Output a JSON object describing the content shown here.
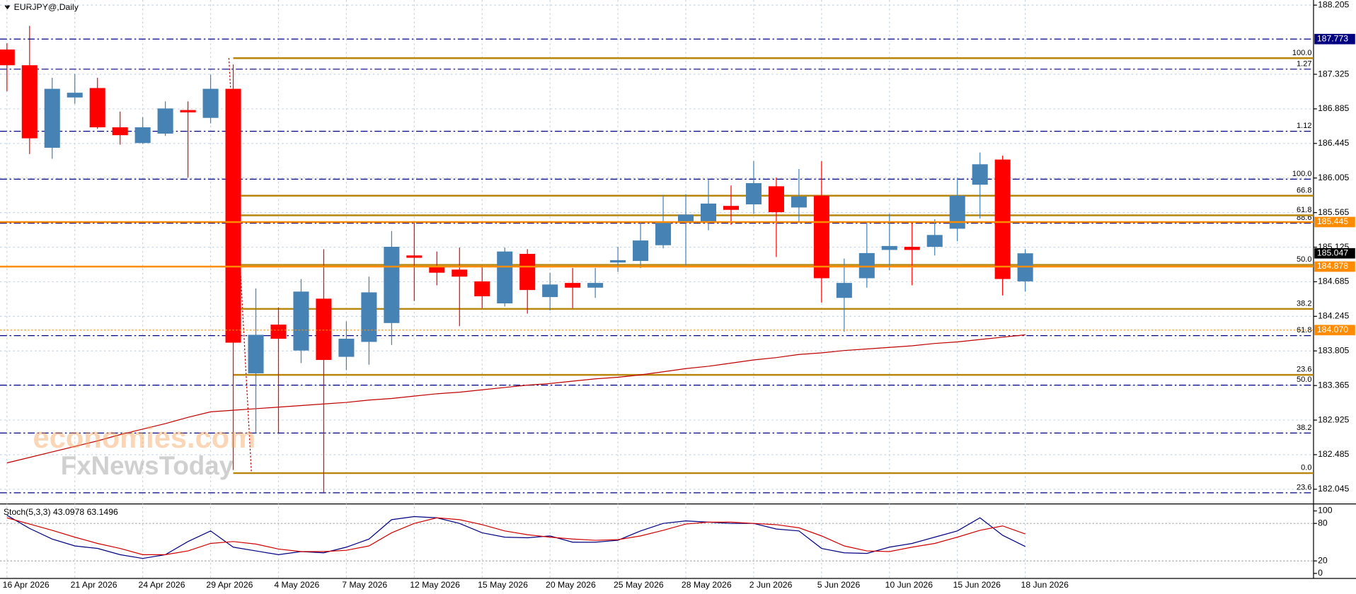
{
  "chart_data": [
    {
      "type": "candlestick",
      "title": "EURJPY@,Daily",
      "categories": [
        "16 Apr 2026",
        null,
        null,
        "21 Apr 2026",
        null,
        null,
        "24 Apr 2026",
        null,
        null,
        "29 Apr 2026",
        null,
        null,
        "4 May 2026",
        null,
        null,
        "7 May 2026",
        null,
        null,
        "12 May 2026",
        null,
        null,
        "15 May 2026",
        null,
        null,
        "20 May 2026",
        null,
        null,
        "25 May 2026",
        null,
        null,
        "28 May 2026",
        null,
        null,
        "2 Jun 2026",
        null,
        null,
        "5 Jun 2026",
        null,
        null,
        "10 Jun 2026",
        null,
        null,
        "15 Jun 2026",
        null,
        null,
        "18 Jun 2026"
      ],
      "open": [
        187.64,
        187.44,
        186.39,
        187.03,
        187.15,
        186.65,
        186.45,
        186.57,
        186.87,
        186.77,
        187.14,
        183.52,
        184.14,
        183.81,
        184.47,
        183.73,
        183.92,
        184.16,
        185.02,
        184.88,
        184.84,
        184.69,
        184.41,
        185.04,
        184.49,
        184.67,
        184.61,
        184.93,
        184.95,
        185.15,
        185.45,
        185.45,
        185.65,
        185.67,
        185.9,
        185.63,
        185.78,
        184.48,
        184.73,
        185.09,
        185.13,
        185.13,
        185.36,
        185.92,
        186.24,
        184.69
      ],
      "high": [
        187.72,
        187.94,
        187.28,
        187.33,
        187.28,
        186.85,
        186.78,
        186.98,
        186.98,
        187.32,
        187.45,
        184.6,
        184.36,
        184.72,
        185.1,
        184.18,
        184.75,
        185.33,
        185.45,
        185.07,
        185.12,
        184.89,
        185.12,
        185.1,
        184.8,
        184.86,
        184.86,
        185.13,
        185.45,
        185.79,
        185.8,
        185.99,
        185.91,
        186.22,
        186.01,
        186.12,
        186.22,
        184.98,
        185.45,
        185.55,
        185.43,
        185.48,
        186.01,
        186.33,
        186.29,
        185.1
      ],
      "low": [
        187.11,
        186.31,
        186.25,
        186.95,
        186.63,
        186.43,
        186.44,
        186.54,
        186.01,
        186.7,
        182.29,
        182.76,
        182.76,
        183.65,
        182.0,
        183.56,
        183.63,
        183.88,
        184.44,
        184.64,
        184.12,
        184.35,
        184.37,
        184.28,
        184.32,
        184.35,
        184.48,
        184.81,
        184.86,
        185.11,
        184.89,
        185.34,
        185.41,
        185.55,
        185.0,
        185.45,
        184.42,
        184.05,
        184.61,
        184.83,
        184.64,
        185.02,
        185.2,
        185.49,
        184.51,
        184.56
      ],
      "close": [
        187.44,
        186.51,
        187.14,
        187.09,
        186.65,
        186.55,
        186.65,
        186.89,
        186.84,
        187.14,
        183.91,
        184.01,
        183.96,
        184.56,
        183.69,
        183.96,
        184.55,
        185.13,
        184.99,
        184.8,
        184.75,
        184.5,
        185.07,
        184.58,
        184.65,
        184.61,
        184.67,
        184.96,
        185.21,
        185.44,
        185.54,
        185.68,
        185.6,
        185.94,
        185.57,
        185.77,
        184.73,
        184.67,
        185.05,
        185.14,
        185.09,
        185.28,
        185.78,
        186.18,
        184.72,
        185.047
      ],
      "up_color": "#4682b4",
      "down_color": "#ff0000",
      "overlay": {
        "color": "#c00000",
        "values": [
          182.38,
          182.45,
          182.52,
          182.59,
          182.66,
          182.74,
          182.81,
          182.88,
          182.96,
          183.03,
          183.05,
          183.07,
          183.09,
          183.11,
          183.13,
          183.15,
          183.18,
          183.2,
          183.23,
          183.26,
          183.28,
          183.31,
          183.34,
          183.37,
          183.39,
          183.42,
          183.45,
          183.47,
          183.5,
          183.54,
          183.58,
          183.61,
          183.65,
          183.69,
          183.72,
          183.76,
          183.78,
          183.81,
          183.83,
          183.85,
          183.87,
          183.9,
          183.92,
          183.95,
          183.98,
          184.01
        ]
      },
      "ylim": [
        181.88,
        188.27
      ],
      "yticks": [
        188.205,
        187.325,
        186.885,
        186.445,
        186.005,
        185.565,
        185.125,
        184.685,
        184.245,
        183.805,
        183.365,
        182.925,
        182.485,
        182.045
      ],
      "grid": true,
      "levels": [
        {
          "value": 187.39,
          "label": "1.27",
          "color": "#000080",
          "style": "dashdot"
        },
        {
          "value": 186.6,
          "label": "1.12",
          "color": "#000080",
          "style": "dashdot"
        },
        {
          "value": 185.99,
          "label": "100.0",
          "color": "#000080",
          "style": "dashdot"
        },
        {
          "value": 185.43,
          "label": "88.6",
          "color": "#000080",
          "style": "dashdot"
        },
        {
          "value": 184.0,
          "label": "61.8",
          "color": "#000080",
          "style": "dashdot"
        },
        {
          "value": 183.37,
          "label": "50.0",
          "color": "#000080",
          "style": "dashdot"
        },
        {
          "value": 182.76,
          "label": "38.2",
          "color": "#000080",
          "style": "dashdot"
        },
        {
          "value": 182.0,
          "label": "23.6",
          "color": "#000080",
          "style": "dashdot"
        },
        {
          "value": 187.53,
          "label": "100.0",
          "color": "#b8860b",
          "style": "fib"
        },
        {
          "value": 185.78,
          "label": "66.8",
          "color": "#b8860b",
          "style": "fib"
        },
        {
          "value": 185.53,
          "label": "61.8",
          "color": "#b8860b",
          "style": "fib"
        },
        {
          "value": 184.9,
          "label": "50.0",
          "color": "#b8860b",
          "style": "fib"
        },
        {
          "value": 184.34,
          "label": "38.2",
          "color": "#b8860b",
          "style": "fib"
        },
        {
          "value": 183.5,
          "label": "23.6",
          "color": "#b8860b",
          "style": "fib"
        },
        {
          "value": 182.25,
          "label": "0.0",
          "color": "#b8860b",
          "style": "fib"
        }
      ],
      "price_tags": [
        {
          "value": 187.773,
          "color": "#000080",
          "style": "dashdot"
        },
        {
          "value": 185.445,
          "color": "#ff8c00",
          "style": "solid"
        },
        {
          "value": 185.047,
          "color": "#000000",
          "style": "none"
        },
        {
          "value": 184.878,
          "color": "#ff8c00",
          "style": "solid"
        },
        {
          "value": {
            "value": 184.07,
            "label": "184.070"
          },
          "color": "#ff8c00",
          "style": "dotted"
        }
      ],
      "watermark": [
        "economies.com",
        "FxNewsToday"
      ]
    },
    {
      "type": "line",
      "title": "Stoch(5,3,3) 43.0978 63.1496",
      "series": [
        {
          "color": "#000080",
          "values": [
            93,
            72,
            55,
            44,
            40,
            30,
            24,
            30,
            51,
            68,
            42,
            36,
            30,
            35,
            33,
            42,
            55,
            86,
            91,
            89,
            80,
            65,
            58,
            57,
            60,
            50,
            50,
            53,
            68,
            80,
            84,
            82,
            80,
            80,
            71,
            68,
            40,
            33,
            32,
            42,
            48,
            58,
            68,
            89,
            61,
            43.0978
          ]
        },
        {
          "color": "#d00000",
          "values": [
            89,
            79,
            69,
            58,
            48,
            40,
            30,
            30,
            36,
            48,
            51,
            47,
            39,
            35,
            35,
            37,
            44,
            65,
            80,
            89,
            86,
            78,
            68,
            62,
            58,
            55,
            53,
            54,
            60,
            69,
            79,
            82,
            82,
            80,
            78,
            73,
            60,
            44,
            36,
            35,
            42,
            48,
            58,
            69,
            76,
            63.1496
          ]
        }
      ],
      "ylim": [
        -8,
        107
      ],
      "yticks": [
        100,
        80,
        20,
        0
      ],
      "levels": [
        80,
        20
      ]
    }
  ]
}
